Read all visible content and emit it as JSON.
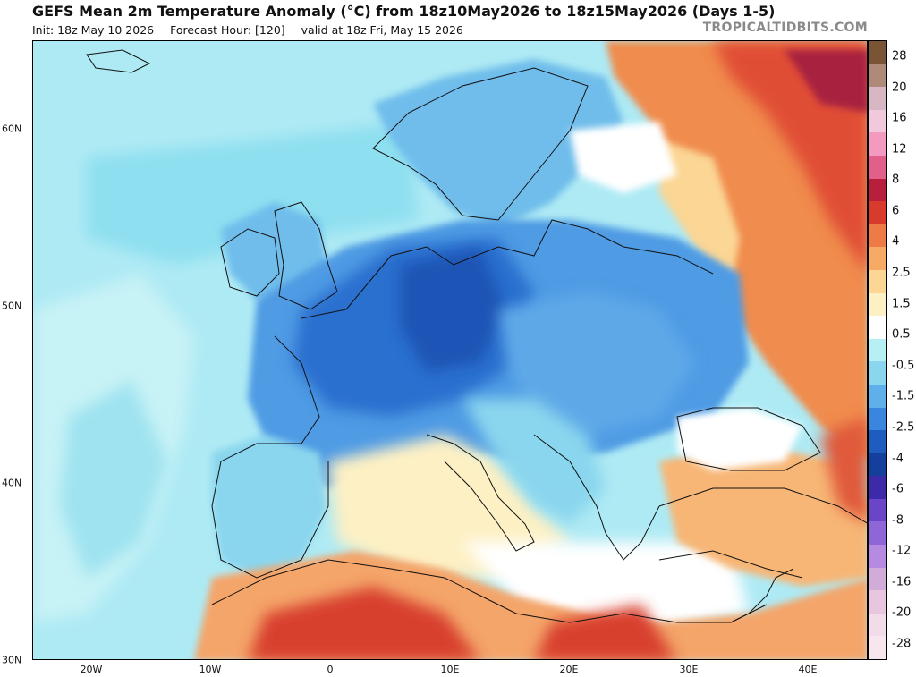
{
  "header": {
    "title": "GEFS Mean 2m Temperature Anomaly (°C) from 18z10May2026 to 18z15May2026 (Days 1-5)",
    "init": "Init: 18z May 10 2026",
    "forecast_hour": "Forecast Hour: [120]",
    "valid": "valid at 18z Fri, May 15 2026",
    "brand": "TROPICALTIDBITS.COM"
  },
  "map": {
    "projection": "equirectangular",
    "lon_range": [
      -25,
      45
    ],
    "lat_range": [
      30,
      65
    ],
    "lat_labels": [
      "60N",
      "50N",
      "40N",
      "30N"
    ],
    "lon_labels": [
      "20W",
      "10W",
      "0",
      "10E",
      "20E",
      "30E",
      "40E"
    ],
    "regions": [
      {
        "name": "western-europe-cold",
        "anomaly": -4
      },
      {
        "name": "central-europe-cold-core",
        "anomaly": -5
      },
      {
        "name": "eastern-europe-cold",
        "anomaly": -2.5
      },
      {
        "name": "russia-warm",
        "anomaly": 6
      },
      {
        "name": "north-africa-warm",
        "anomaly": 6
      },
      {
        "name": "turkey-warm",
        "anomaly": 2.5
      }
    ]
  },
  "colorbar": {
    "labels": [
      "28",
      "20",
      "16",
      "12",
      "8",
      "6",
      "4",
      "2.5",
      "1.5",
      "0.5",
      "-0.5",
      "-1.5",
      "-2.5",
      "-4",
      "-6",
      "-8",
      "-12",
      "-16",
      "-20",
      "-28"
    ],
    "colors": [
      "#7a5535",
      "#b08a78",
      "#d8b7c4",
      "#f2c9dc",
      "#f29ac0",
      "#e0608a",
      "#b81f3d",
      "#d83a2b",
      "#ee7a48",
      "#f7aa65",
      "#fbd694",
      "#fdf0c4",
      "#ffffff",
      "#b6f0f4",
      "#8ad6ee",
      "#5fb0ea",
      "#3a86de",
      "#1f5cc0",
      "#143f9c",
      "#3c2aa8",
      "#6a45c8",
      "#8f66d8",
      "#b58ae0",
      "#d2acd8",
      "#e8c6e0",
      "#f3dcea",
      "#f7e6ee"
    ]
  }
}
